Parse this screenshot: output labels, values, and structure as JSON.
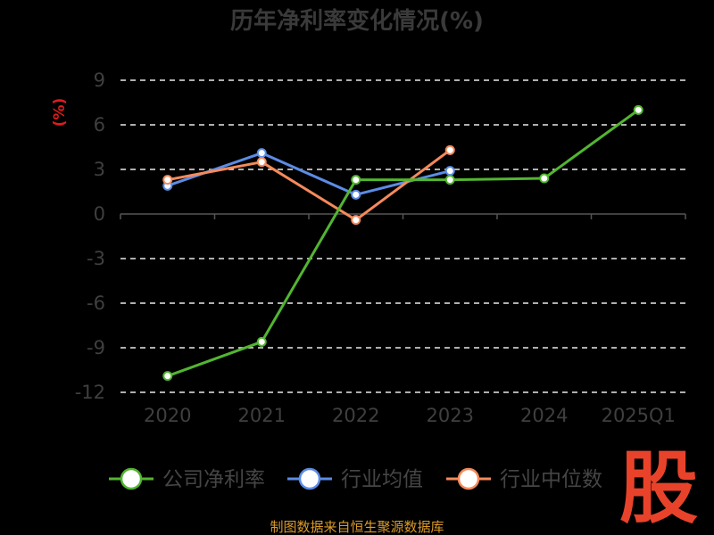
{
  "chart_data": {
    "type": "line",
    "title": "历年净利率变化情况(%)",
    "ylabel": "(%)",
    "categories": [
      "2020",
      "2021",
      "2022",
      "2023",
      "2024",
      "2025Q1"
    ],
    "y_ticks": [
      "9",
      "6",
      "3",
      "0",
      "-3",
      "-6",
      "-9",
      "-12"
    ],
    "ylim": [
      -12,
      9
    ],
    "grid": true,
    "legend_position": "bottom",
    "series": [
      {
        "name": "公司净利率",
        "color": "#52b531",
        "values": [
          -10.9,
          -8.6,
          2.3,
          2.3,
          2.4,
          7.0
        ]
      },
      {
        "name": "行业均值",
        "color": "#5b8ce6",
        "values": [
          1.9,
          4.1,
          1.3,
          2.9,
          null,
          null
        ]
      },
      {
        "name": "行业中位数",
        "color": "#f58a5a",
        "values": [
          2.3,
          3.5,
          -0.4,
          4.3,
          null,
          null
        ]
      }
    ]
  },
  "source": "制图数据来自恒生聚源数据库",
  "watermark": "股"
}
